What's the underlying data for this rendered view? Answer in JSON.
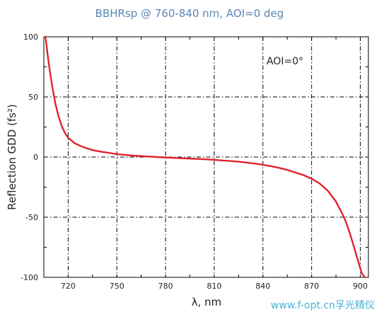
{
  "chart_data": {
    "type": "line",
    "title": "BBHRsp @ 760-840 nm, AOI=0 deg",
    "xlabel": "λ, nm",
    "ylabel": "Reflection GDD (fs²)",
    "xlim": [
      705,
      905
    ],
    "ylim": [
      -100,
      100
    ],
    "x_ticks": [
      720,
      750,
      780,
      810,
      840,
      870,
      900
    ],
    "y_ticks": [
      100,
      50,
      0,
      -50,
      -100
    ],
    "grid": true,
    "annotations": [
      "AOI=0°"
    ],
    "series": [
      {
        "color": "#e0242a",
        "x": [
          706,
          708,
          710,
          712,
          714,
          716,
          718,
          720,
          724,
          728,
          732,
          736,
          740,
          745,
          750,
          755,
          760,
          765,
          770,
          775,
          780,
          785,
          790,
          795,
          800,
          805,
          810,
          815,
          820,
          825,
          830,
          835,
          840,
          845,
          850,
          855,
          860,
          865,
          870,
          875,
          880,
          885,
          890,
          893,
          896,
          899,
          901,
          903
        ],
        "y": [
          100,
          78,
          60,
          45,
          34,
          26,
          20,
          16,
          11.5,
          9,
          7,
          5.5,
          4.5,
          3.5,
          2.5,
          1.8,
          1.2,
          0.8,
          0.4,
          0,
          -0.3,
          -0.7,
          -1,
          -1.3,
          -1.6,
          -1.9,
          -2.3,
          -2.8,
          -3.3,
          -3.9,
          -4.6,
          -5.4,
          -6.4,
          -7.6,
          -9,
          -10.7,
          -12.8,
          -15,
          -18,
          -22,
          -28,
          -37,
          -50,
          -61,
          -74,
          -88,
          -97,
          -100
        ]
      }
    ]
  },
  "watermark": "www.f-opt.cn孚光精仪"
}
